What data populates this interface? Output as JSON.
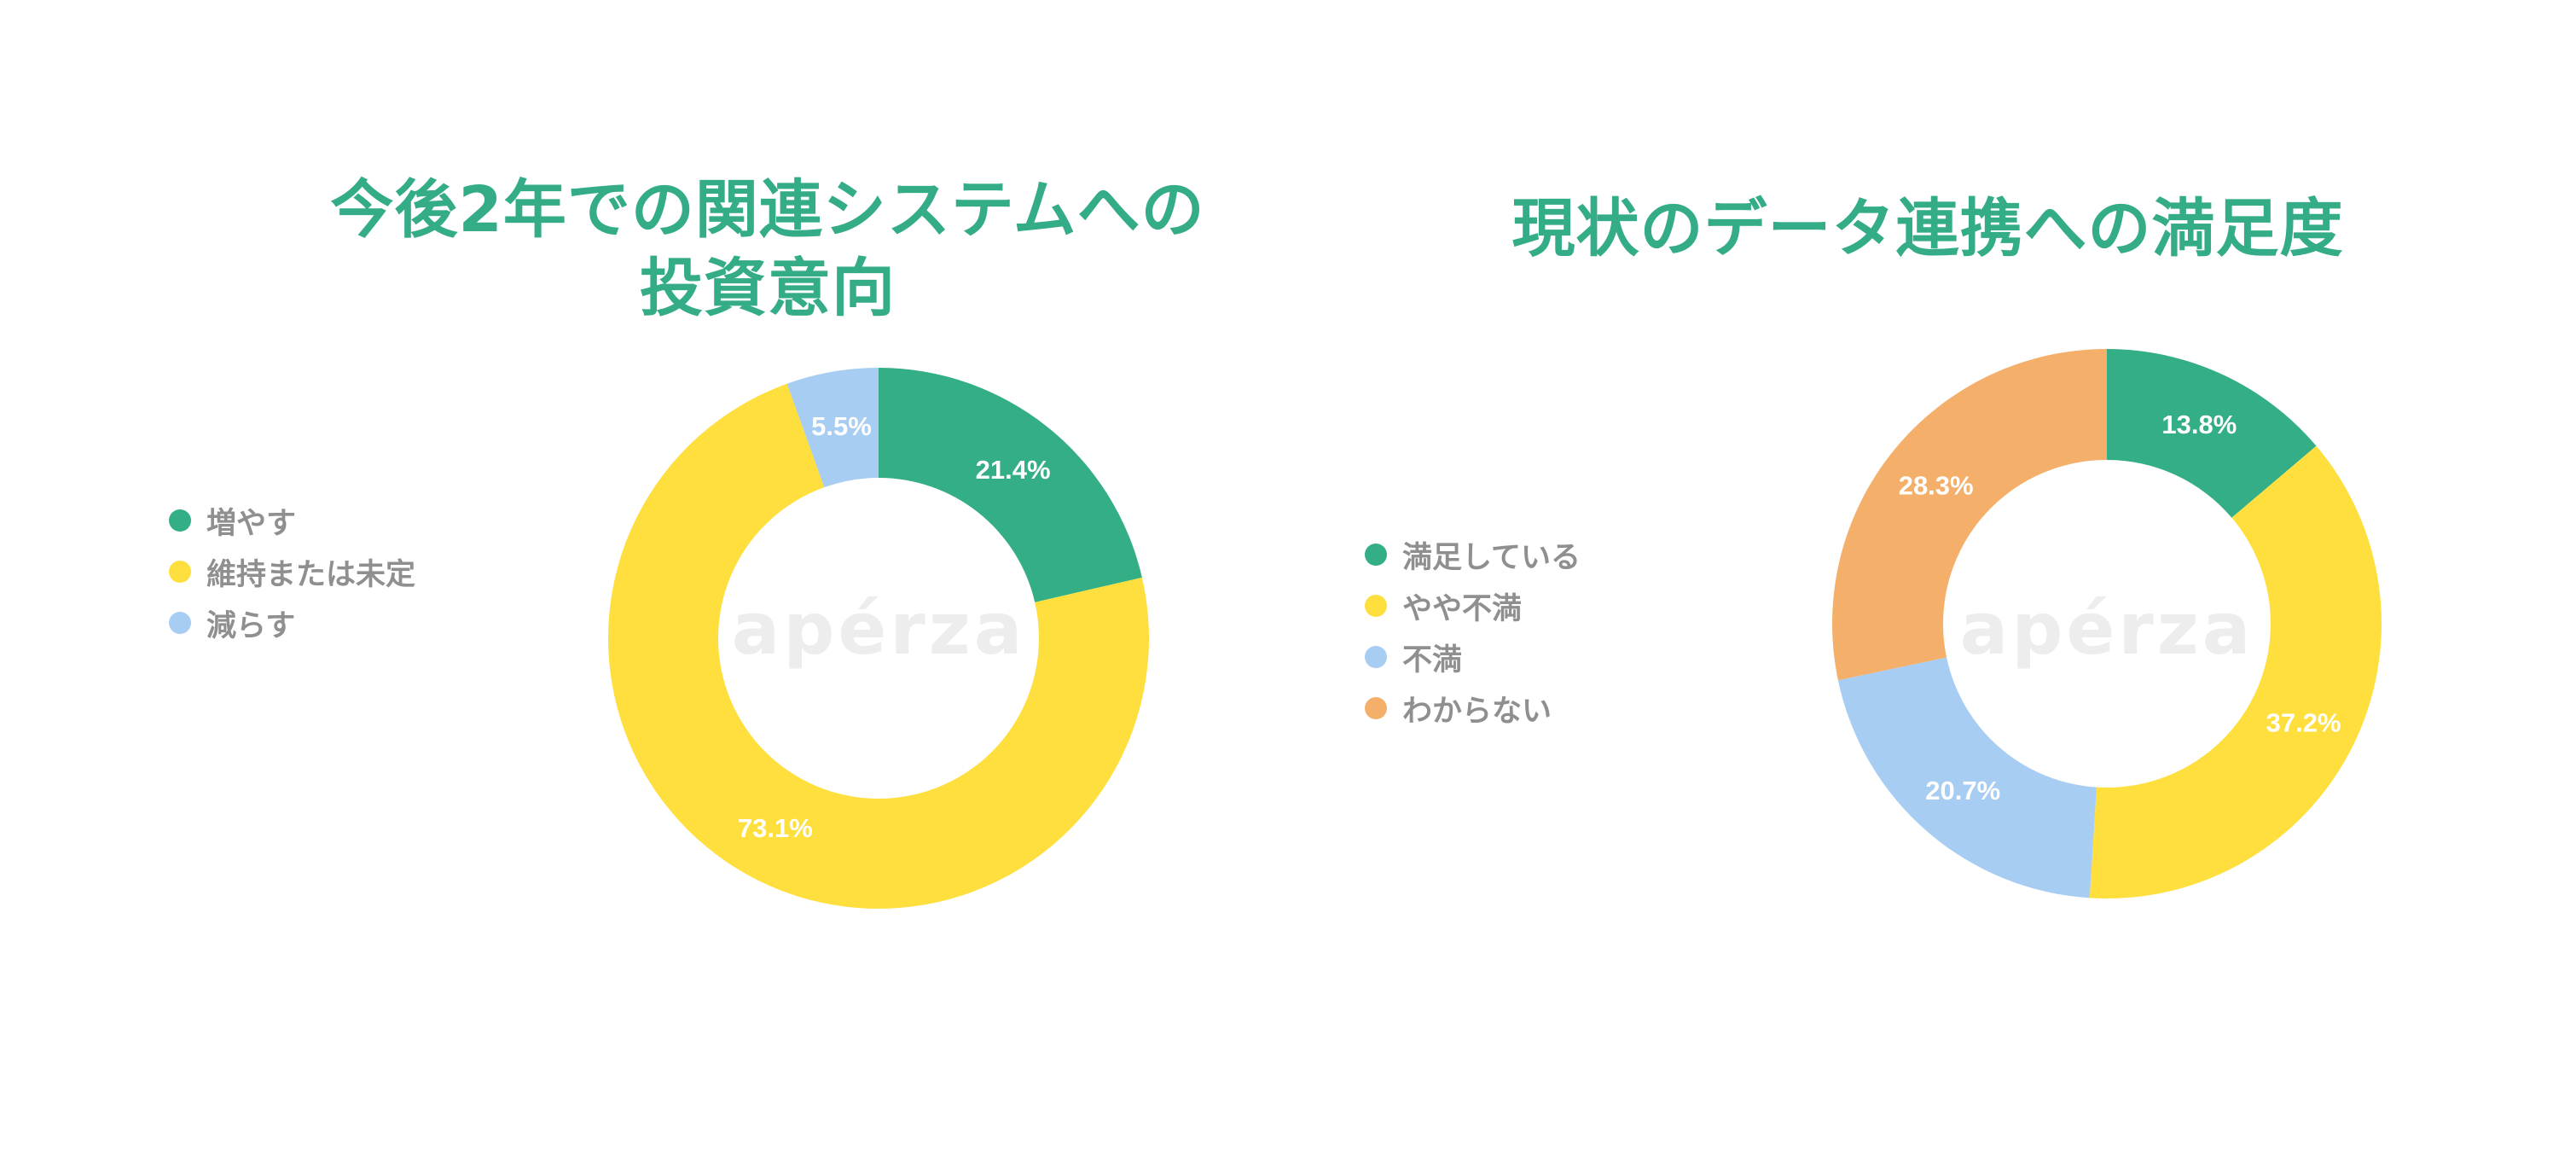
{
  "colors": {
    "title": "#33ac87",
    "legend_text": "#8f8f8f",
    "slice_label": "#ffffff",
    "watermark": "#ededed"
  },
  "watermark": "apérza",
  "chart_data": [
    {
      "type": "pie",
      "title": "今後2年での関連システムへの\n投資意向",
      "legend": "left",
      "categories": [
        "増やす",
        "維持または未定",
        "減らす"
      ],
      "values": [
        21.4,
        73.1,
        5.5
      ],
      "labels": [
        "21.4%",
        "73.1%",
        "5.5%"
      ],
      "colors": [
        "#33ae87",
        "#fedf3e",
        "#a8cdf3"
      ]
    },
    {
      "type": "pie",
      "title": "現状のデータ連携への満足度",
      "legend": "left",
      "categories": [
        "満足している",
        "やや不満",
        "不満",
        "わからない"
      ],
      "values": [
        13.8,
        37.2,
        20.7,
        28.3
      ],
      "labels": [
        "13.8%",
        "37.2%",
        "20.7%",
        "28.3%"
      ],
      "colors": [
        "#33ae87",
        "#fedf3e",
        "#a8cdf3",
        "#f4b06b"
      ]
    }
  ]
}
